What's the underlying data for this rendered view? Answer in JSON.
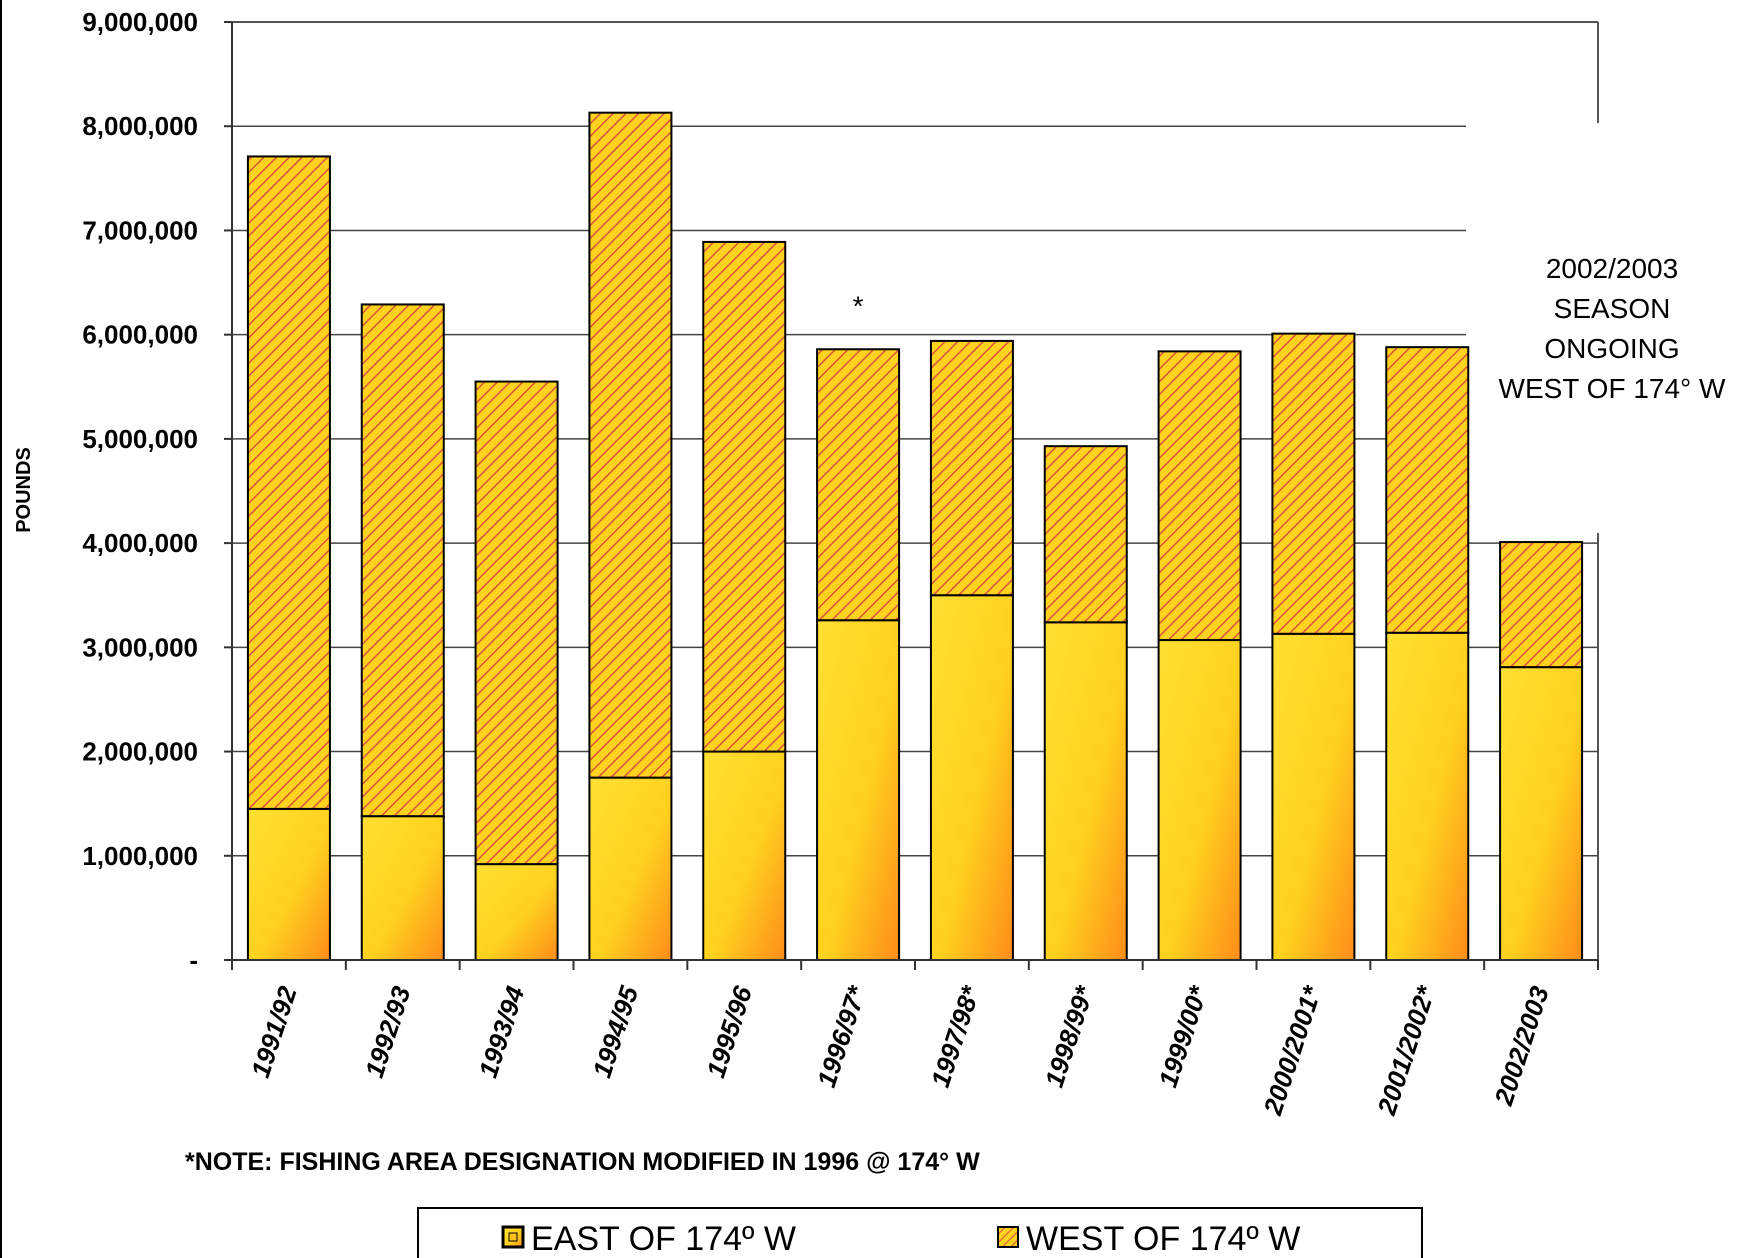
{
  "chart_data": {
    "type": "bar",
    "stacked": true,
    "title": "",
    "xlabel": "",
    "ylabel": "POUNDS",
    "ylim": [
      0,
      9000000
    ],
    "yticks": [
      0,
      1000000,
      2000000,
      3000000,
      4000000,
      5000000,
      6000000,
      7000000,
      8000000,
      9000000
    ],
    "ytick_labels": [
      "-",
      "1,000,000",
      "2,000,000",
      "3,000,000",
      "4,000,000",
      "5,000,000",
      "6,000,000",
      "7,000,000",
      "8,000,000",
      "9,000,000"
    ],
    "categories": [
      "1991/92",
      "1992/93",
      "1993/94",
      "1994/95",
      "1995/96",
      "1996/97*",
      "1997/98*",
      "1998/99*",
      "1999/00*",
      "2000/2001*",
      "2001/2002*",
      "2002/2003"
    ],
    "series": [
      {
        "name": "EAST OF 174º  W",
        "values": [
          1450000,
          1380000,
          920000,
          1750000,
          2000000,
          3260000,
          3500000,
          3240000,
          3070000,
          3130000,
          3140000,
          2810000
        ]
      },
      {
        "name": "WEST OF 174º  W",
        "values": [
          6260000,
          4910000,
          4630000,
          6380000,
          4890000,
          2600000,
          2440000,
          1690000,
          2770000,
          2880000,
          2740000,
          1200000
        ]
      }
    ],
    "grid": true,
    "legend_position": "bottom",
    "annotations": {
      "star_over_bar": "*",
      "season_note": [
        "2002/2003",
        "SEASON",
        "ONGOING",
        "WEST OF 174° W"
      ],
      "footnote": "*NOTE:  FISHING AREA DESIGNATION MODIFIED IN 1996 @ 174° W"
    }
  },
  "colors": {
    "east_fill": "#ffe033",
    "east_gradient_end": "#ff8c1a",
    "west_fill": "#ffd21f",
    "west_hatch": "#e0523a"
  }
}
